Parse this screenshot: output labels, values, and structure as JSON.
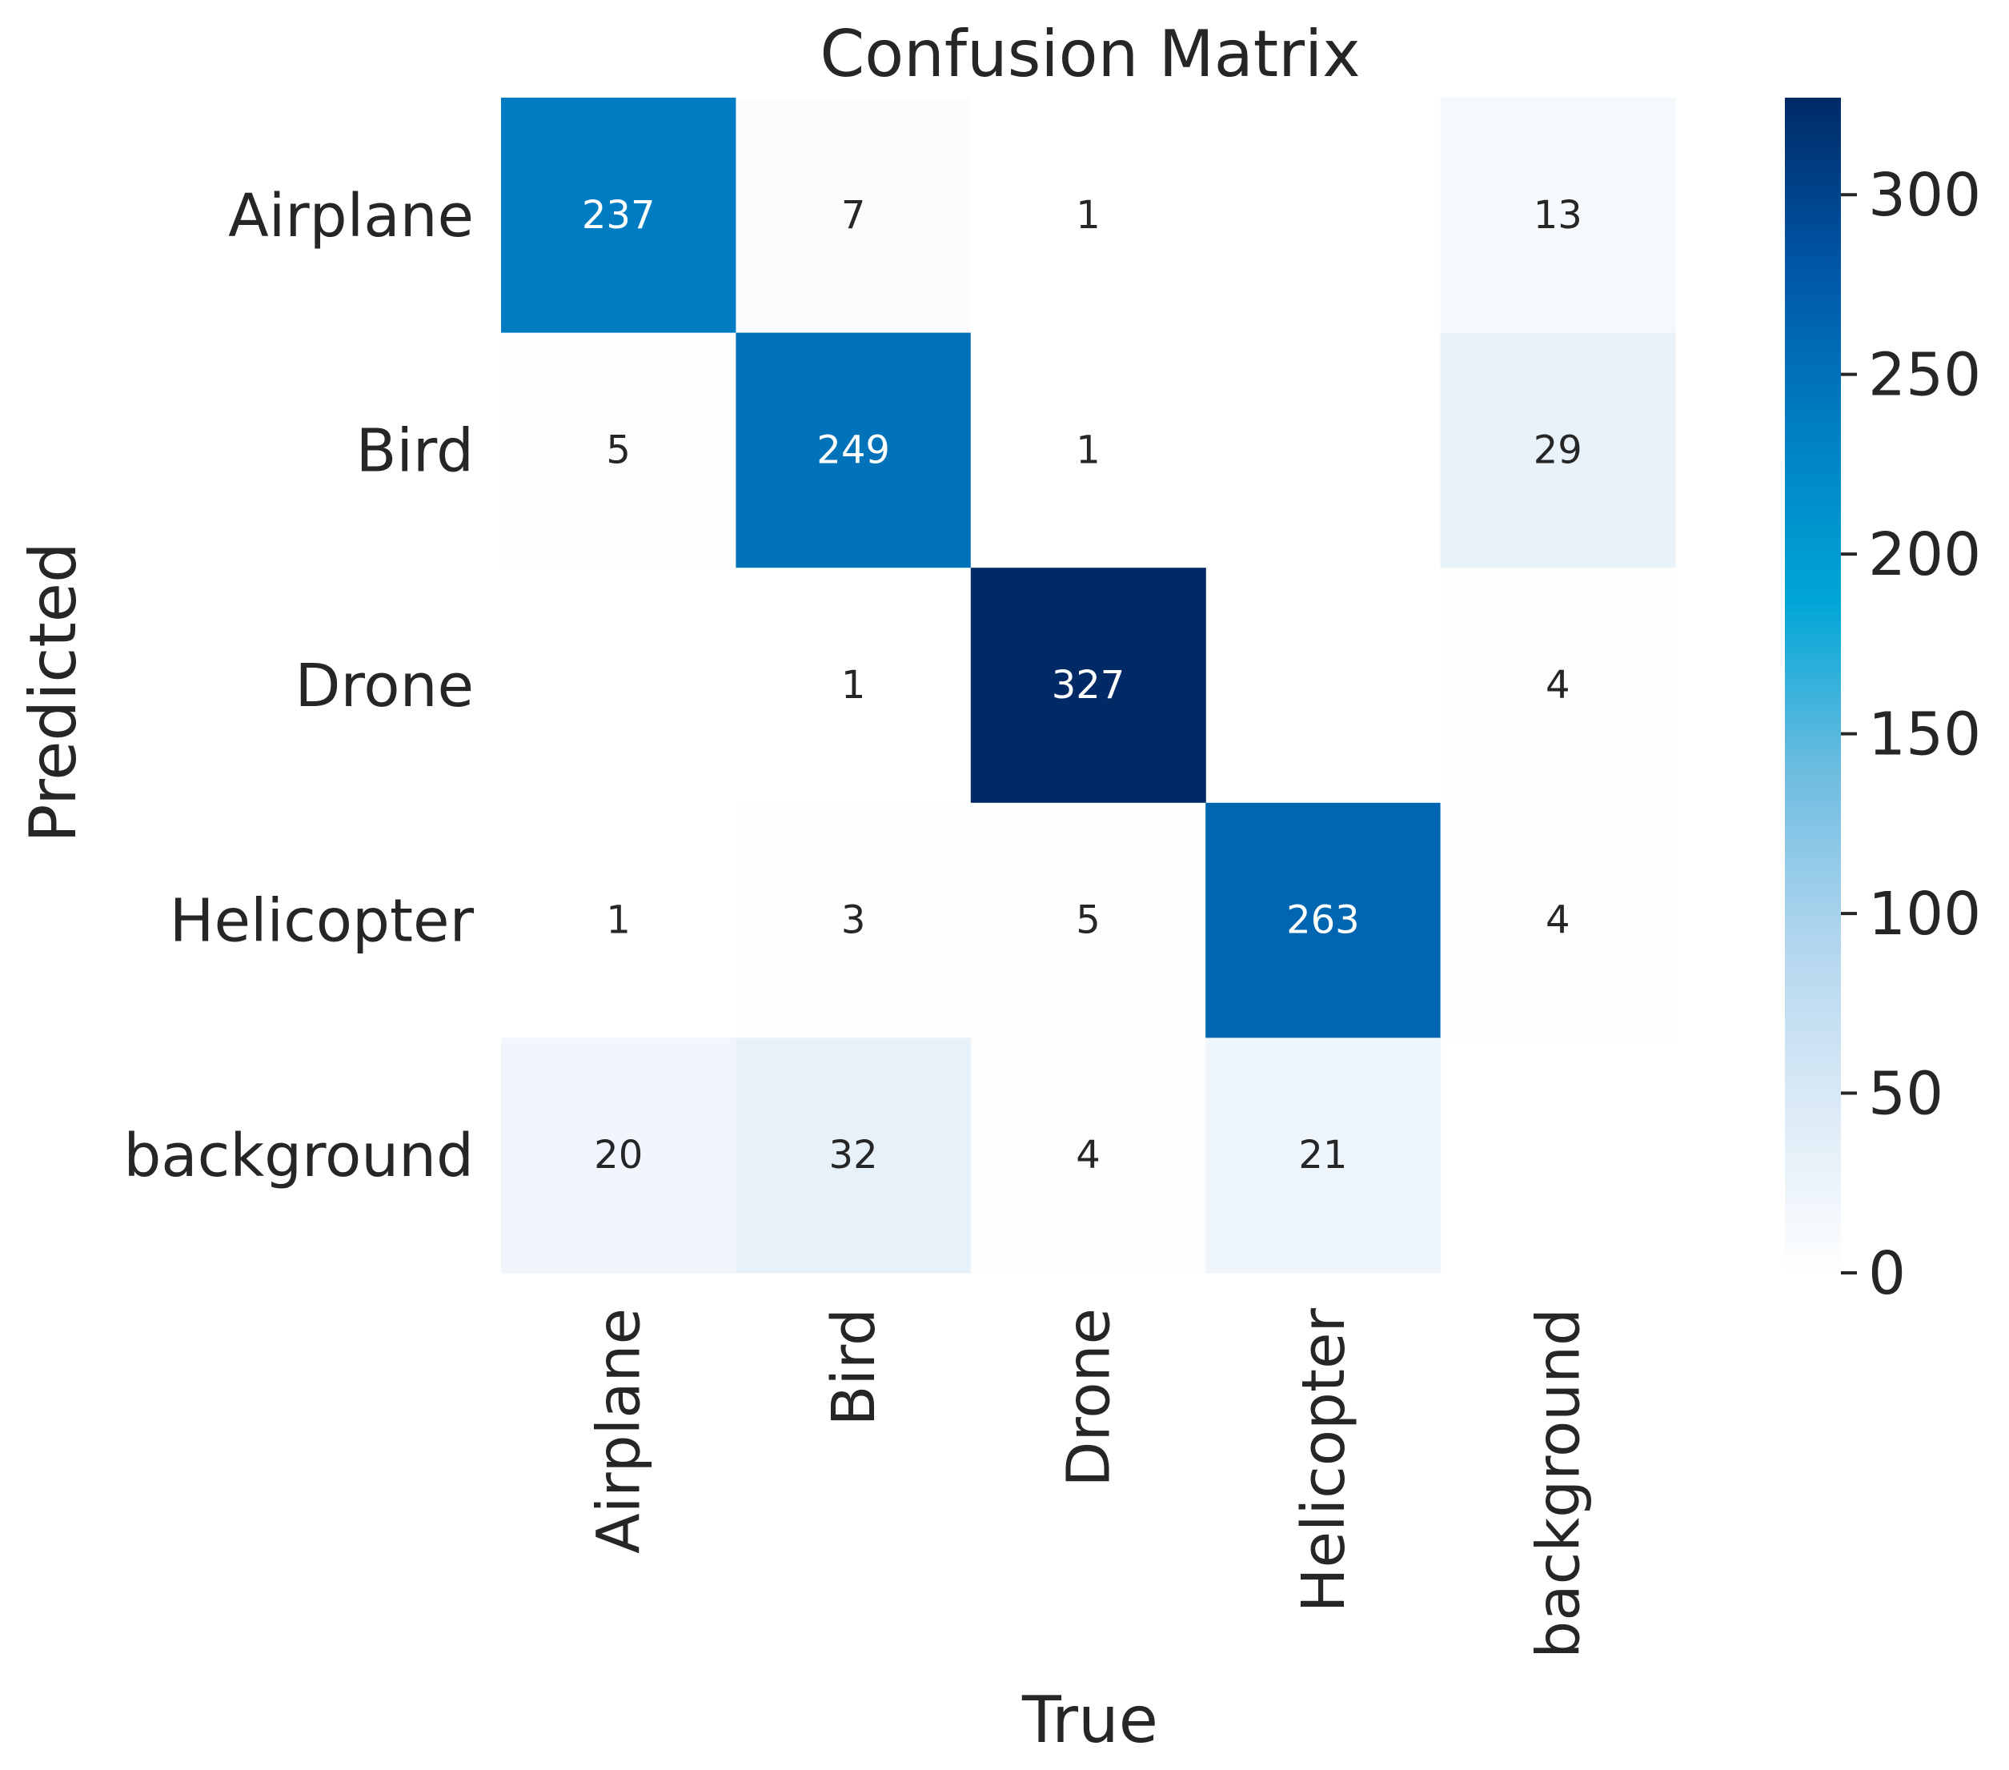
{
  "chart_data": {
    "type": "heatmap",
    "title": "Confusion Matrix",
    "xlabel": "True",
    "ylabel": "Predicted",
    "x_categories": [
      "Airplane",
      "Bird",
      "Drone",
      "Helicopter",
      "background"
    ],
    "y_categories": [
      "Airplane",
      "Bird",
      "Drone",
      "Helicopter",
      "background"
    ],
    "values": [
      [
        237,
        7,
        1,
        null,
        13
      ],
      [
        5,
        249,
        1,
        null,
        29
      ],
      [
        null,
        1,
        327,
        null,
        4
      ],
      [
        1,
        3,
        5,
        263,
        4
      ],
      [
        20,
        32,
        4,
        21,
        null
      ]
    ],
    "colormap": "Blues",
    "colorbar": {
      "min": 0,
      "max": 327,
      "ticks": [
        0,
        50,
        100,
        150,
        200,
        250,
        300
      ],
      "tick_labels": [
        "0",
        "50",
        "100",
        "150",
        "200",
        "250",
        "300"
      ],
      "stops": [
        "#ffffff",
        "#dbeaf6",
        "#b0d5ee",
        "#6cbce0",
        "#00a6d6",
        "#0080c4",
        "#0056a6",
        "#002a66"
      ]
    }
  }
}
